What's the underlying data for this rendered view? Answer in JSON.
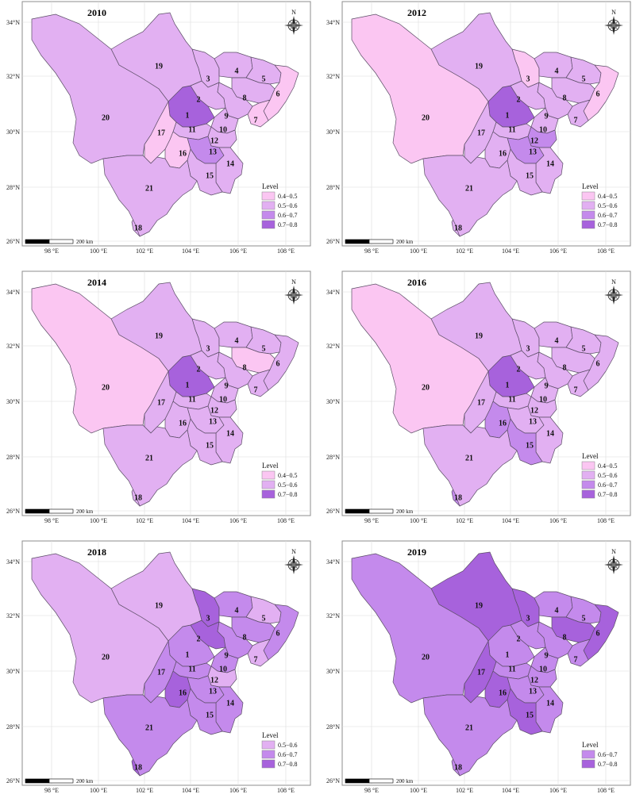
{
  "colors": {
    "0.4-0.5": "#fbc6f2",
    "0.5-0.6": "#e2b0f2",
    "0.6-0.7": "#c48aec",
    "0.7-0.8": "#a762dc"
  },
  "axes": {
    "lat_ticks": [
      "34°N",
      "32°N",
      "30°N",
      "28°N",
      "26°N"
    ],
    "lon_ticks": [
      "98 °E",
      "100 °E",
      "102 °E",
      "104 °E",
      "106 °E",
      "108 °E"
    ]
  },
  "scale_bar": "200 km",
  "compass_label": "N",
  "legend_title": "Level",
  "panels": [
    {
      "year": "2010",
      "legend": [
        "0.4−0.5",
        "0.5−0.6",
        "0.6−0.7",
        "0.7−0.8"
      ],
      "legend_keys": [
        "0.4-0.5",
        "0.5-0.6",
        "0.6-0.7",
        "0.7-0.8"
      ],
      "levels": {
        "1": "0.7-0.8",
        "2": "0.5-0.6",
        "3": "0.5-0.6",
        "4": "0.5-0.6",
        "5": "0.5-0.6",
        "6": "0.4-0.5",
        "7": "0.4-0.5",
        "8": "0.5-0.6",
        "9": "0.5-0.6",
        "10": "0.5-0.6",
        "11": "0.5-0.6",
        "12": "0.5-0.6",
        "13": "0.6-0.7",
        "14": "0.5-0.6",
        "15": "0.5-0.6",
        "16": "0.4-0.5",
        "17": "0.4-0.5",
        "18": "0.5-0.6",
        "19": "0.5-0.6",
        "20": "0.5-0.6",
        "21": "0.5-0.6"
      }
    },
    {
      "year": "2012",
      "legend": [
        "0.4−0.5",
        "0.5−0.6",
        "0.6−0.7",
        "0.7−0.8"
      ],
      "legend_keys": [
        "0.4-0.5",
        "0.5-0.6",
        "0.6-0.7",
        "0.7-0.8"
      ],
      "levels": {
        "1": "0.7-0.8",
        "2": "0.5-0.6",
        "3": "0.4-0.5",
        "4": "0.5-0.6",
        "5": "0.5-0.6",
        "6": "0.4-0.5",
        "7": "0.5-0.6",
        "8": "0.5-0.6",
        "9": "0.5-0.6",
        "10": "0.5-0.6",
        "11": "0.5-0.6",
        "12": "0.6-0.7",
        "13": "0.6-0.7",
        "14": "0.5-0.6",
        "15": "0.5-0.6",
        "16": "0.5-0.6",
        "17": "0.5-0.6",
        "18": "0.5-0.6",
        "19": "0.5-0.6",
        "20": "0.4-0.5",
        "21": "0.5-0.6"
      }
    },
    {
      "year": "2014",
      "legend": [
        "0.4−0.5",
        "0.5−0.6",
        "0.7−0.8"
      ],
      "legend_keys": [
        "0.4-0.5",
        "0.5-0.6",
        "0.7-0.8"
      ],
      "levels": {
        "1": "0.7-0.8",
        "2": "0.5-0.6",
        "3": "0.5-0.6",
        "4": "0.5-0.6",
        "5": "0.5-0.6",
        "6": "0.5-0.6",
        "7": "0.5-0.6",
        "8": "0.4-0.5",
        "9": "0.5-0.6",
        "10": "0.5-0.6",
        "11": "0.5-0.6",
        "12": "0.5-0.6",
        "13": "0.5-0.6",
        "14": "0.5-0.6",
        "15": "0.5-0.6",
        "16": "0.5-0.6",
        "17": "0.5-0.6",
        "18": "0.5-0.6",
        "19": "0.5-0.6",
        "20": "0.4-0.5",
        "21": "0.5-0.6"
      }
    },
    {
      "year": "2016",
      "legend": [
        "0.4−0.5",
        "0.5−0.6",
        "0.6−0.7",
        "0.7−0.8"
      ],
      "legend_keys": [
        "0.4-0.5",
        "0.5-0.6",
        "0.6-0.7",
        "0.7-0.8"
      ],
      "levels": {
        "1": "0.7-0.8",
        "2": "0.5-0.6",
        "3": "0.5-0.6",
        "4": "0.5-0.6",
        "5": "0.5-0.6",
        "6": "0.5-0.6",
        "7": "0.5-0.6",
        "8": "0.5-0.6",
        "9": "0.5-0.6",
        "10": "0.5-0.6",
        "11": "0.5-0.6",
        "12": "0.5-0.6",
        "13": "0.5-0.6",
        "14": "0.5-0.6",
        "15": "0.6-0.7",
        "16": "0.6-0.7",
        "17": "0.5-0.6",
        "18": "0.6-0.7",
        "19": "0.5-0.6",
        "20": "0.4-0.5",
        "21": "0.5-0.6"
      }
    },
    {
      "year": "2018",
      "legend": [
        "0.5−0.6",
        "0.6−0.7",
        "0.7−0.8"
      ],
      "legend_keys": [
        "0.5-0.6",
        "0.6-0.7",
        "0.7-0.8"
      ],
      "levels": {
        "1": "0.6-0.7",
        "2": "0.7-0.8",
        "3": "0.7-0.8",
        "4": "0.6-0.7",
        "5": "0.5-0.6",
        "6": "0.6-0.7",
        "7": "0.5-0.6",
        "8": "0.6-0.7",
        "9": "0.6-0.7",
        "10": "0.6-0.7",
        "11": "0.6-0.7",
        "12": "0.5-0.6",
        "13": "0.6-0.7",
        "14": "0.6-0.7",
        "15": "0.6-0.7",
        "16": "0.7-0.8",
        "17": "0.6-0.7",
        "18": "0.7-0.8",
        "19": "0.5-0.6",
        "20": "0.5-0.6",
        "21": "0.6-0.7"
      }
    },
    {
      "year": "2019",
      "legend": [
        "0.6−0.7",
        "0.7−0.8"
      ],
      "legend_keys": [
        "0.6-0.7",
        "0.7-0.8"
      ],
      "levels": {
        "1": "0.6-0.7",
        "2": "0.6-0.7",
        "3": "0.7-0.8",
        "4": "0.6-0.7",
        "5": "0.6-0.7",
        "6": "0.7-0.8",
        "7": "0.6-0.7",
        "8": "0.7-0.8",
        "9": "0.6-0.7",
        "10": "0.6-0.7",
        "11": "0.6-0.7",
        "12": "0.6-0.7",
        "13": "0.6-0.7",
        "14": "0.6-0.7",
        "15": "0.7-0.8",
        "16": "0.7-0.8",
        "17": "0.7-0.8",
        "18": "0.6-0.7",
        "19": "0.7-0.8",
        "20": "0.6-0.7",
        "21": "0.6-0.7"
      }
    }
  ]
}
